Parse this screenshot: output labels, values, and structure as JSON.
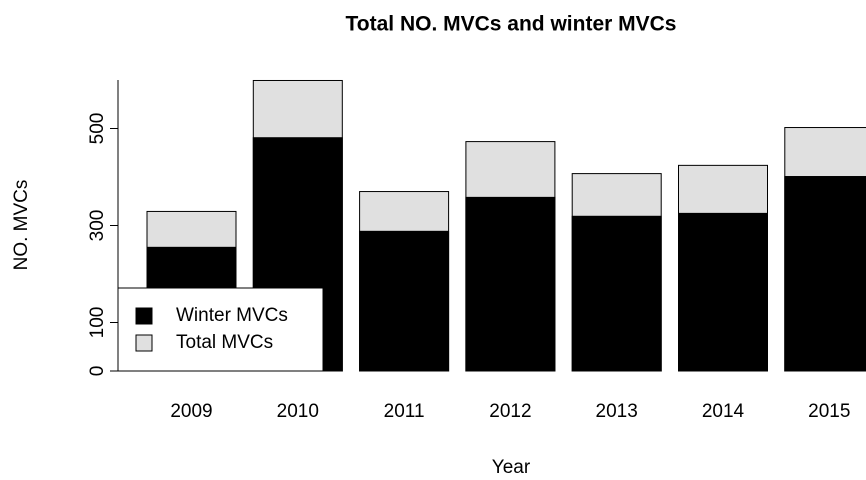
{
  "chart_data": {
    "type": "bar",
    "title": "Total NO. MVCs and winter MVCs",
    "xlabel": "Year",
    "ylabel": "NO. MVCs",
    "categories": [
      "2009",
      "2010",
      "2011",
      "2012",
      "2013",
      "2014",
      "2015"
    ],
    "series": [
      {
        "name": "Winter MVCs",
        "color": "#000000",
        "values": [
          255,
          481,
          288,
          358,
          319,
          325,
          401
        ]
      },
      {
        "name": "Total MVCs",
        "color": "#e0e0e0",
        "values": [
          329,
          599,
          370,
          473,
          407,
          424,
          502
        ]
      }
    ],
    "ylim": [
      0,
      600
    ],
    "yticks": [
      0,
      100,
      300,
      500
    ],
    "legend": "bottomleft"
  }
}
